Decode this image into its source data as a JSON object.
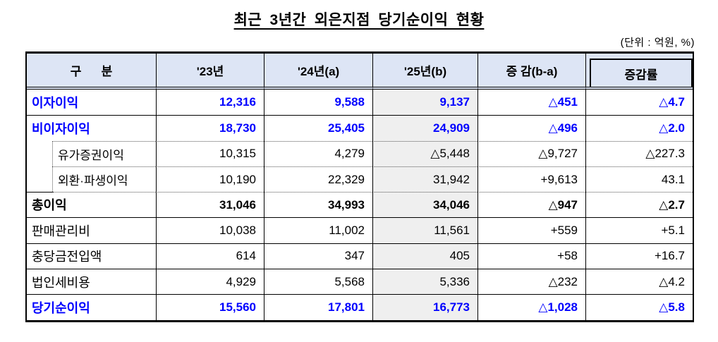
{
  "title": "최근 3년간 외은지점 당기순이익 현황",
  "unit_note": "(단위 : 억원, %)",
  "colors": {
    "header_bg": "#dde5f5",
    "year25_column_bg": "#efefef",
    "accent_blue": "#0000ff"
  },
  "table": {
    "columns": [
      "구      분",
      "'23년",
      "'24년(a)",
      "'25년(b)",
      "증 감(b-a)",
      "증감률"
    ],
    "rows": [
      {
        "label": "이자이익",
        "style": "blue-bold",
        "values": [
          "12,316",
          "9,588",
          "9,137",
          "△451",
          "△4.7"
        ]
      },
      {
        "label": "비이자이익",
        "style": "blue-bold",
        "values": [
          "18,730",
          "25,405",
          "24,909",
          "△496",
          "△2.0"
        ]
      },
      {
        "label": "유가증권이익",
        "style": "sub",
        "values": [
          "10,315",
          "4,279",
          "△5,448",
          "△9,727",
          "△227.3"
        ]
      },
      {
        "label": "외환·파생이익",
        "style": "sub",
        "values": [
          "10,190",
          "22,329",
          "31,942",
          "+9,613",
          "43.1"
        ]
      },
      {
        "label": "총이익",
        "style": "bold",
        "values": [
          "31,046",
          "34,993",
          "34,046",
          "△947",
          "△2.7"
        ]
      },
      {
        "label": "판매관리비",
        "style": "normal",
        "values": [
          "10,038",
          "11,002",
          "11,561",
          "+559",
          "+5.1"
        ]
      },
      {
        "label": "충당금전입액",
        "style": "normal",
        "values": [
          "614",
          "347",
          "405",
          "+58",
          "+16.7"
        ]
      },
      {
        "label": "법인세비용",
        "style": "normal",
        "values": [
          "4,929",
          "5,568",
          "5,336",
          "△232",
          "△4.2"
        ]
      },
      {
        "label": "당기순이익",
        "style": "blue-bold",
        "values": [
          "15,560",
          "17,801",
          "16,773",
          "△1,028",
          "△5.8"
        ]
      }
    ]
  }
}
